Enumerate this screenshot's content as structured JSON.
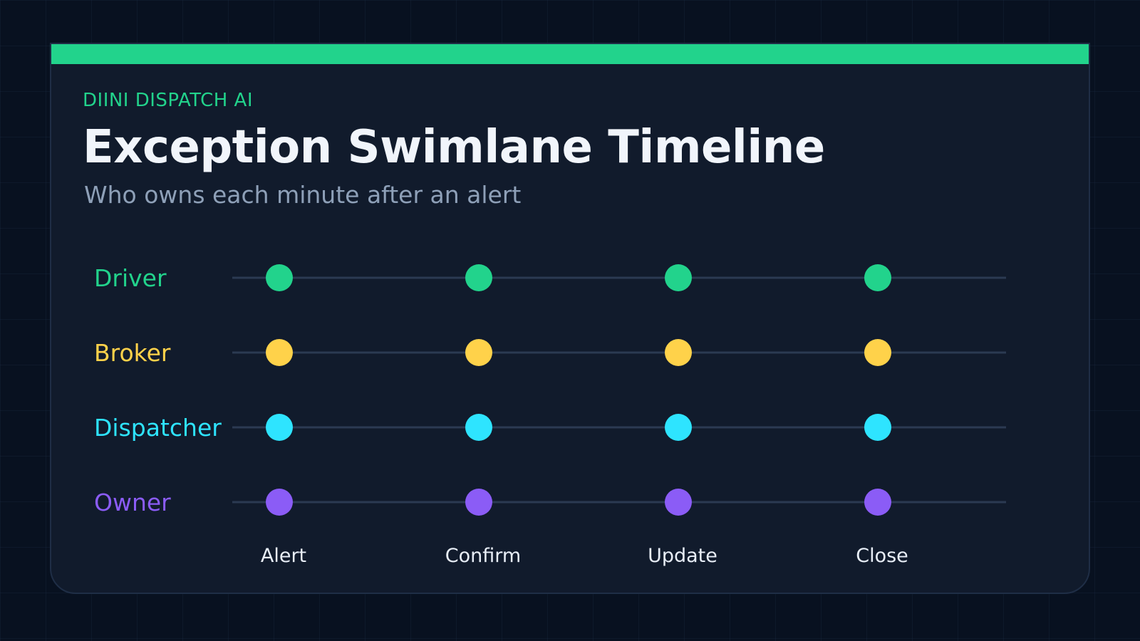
{
  "header": {
    "brand": "DIINI DISPATCH AI",
    "title": "Exception Swimlane Timeline",
    "subtitle": "Who owns each minute after an alert"
  },
  "colors": {
    "background": "#081120",
    "card": "#111b2c",
    "accent": "#22d38c",
    "lane_line": "#2b3a52"
  },
  "lanes": [
    {
      "name": "Driver",
      "color": "#22d38c"
    },
    {
      "name": "Broker",
      "color": "#ffd24a"
    },
    {
      "name": "Dispatcher",
      "color": "#2ee4ff"
    },
    {
      "name": "Owner",
      "color": "#8b5cf6"
    }
  ],
  "steps": [
    "Alert",
    "Confirm",
    "Update",
    "Close"
  ]
}
